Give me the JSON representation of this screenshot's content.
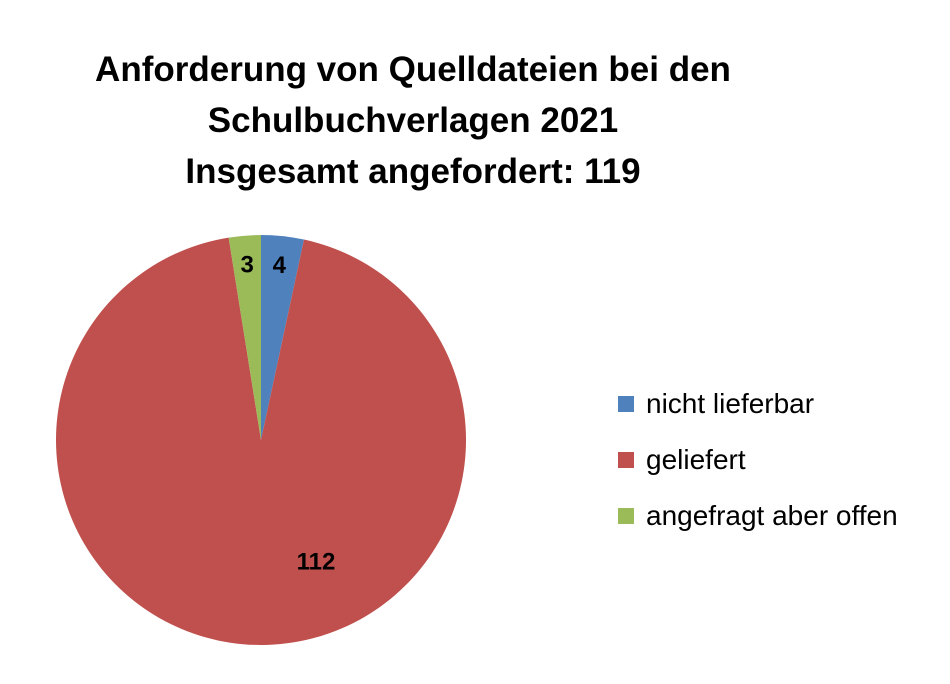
{
  "chart_data": {
    "type": "pie",
    "title_lines": [
      "Anforderung von Quelldateien bei den",
      "Schulbuchverlagen 2021",
      "Insgesamt angefordert: 119"
    ],
    "categories": [
      "nicht lieferbar",
      "geliefert",
      "angefragt aber offen"
    ],
    "values": [
      4,
      112,
      3
    ],
    "data_labels": [
      "4",
      "112",
      "3"
    ],
    "colors": [
      "#4F81BD",
      "#C0504D",
      "#9BBB59"
    ],
    "start_angle": "12 o'clock",
    "direction": "clockwise",
    "legend_position": "right"
  }
}
